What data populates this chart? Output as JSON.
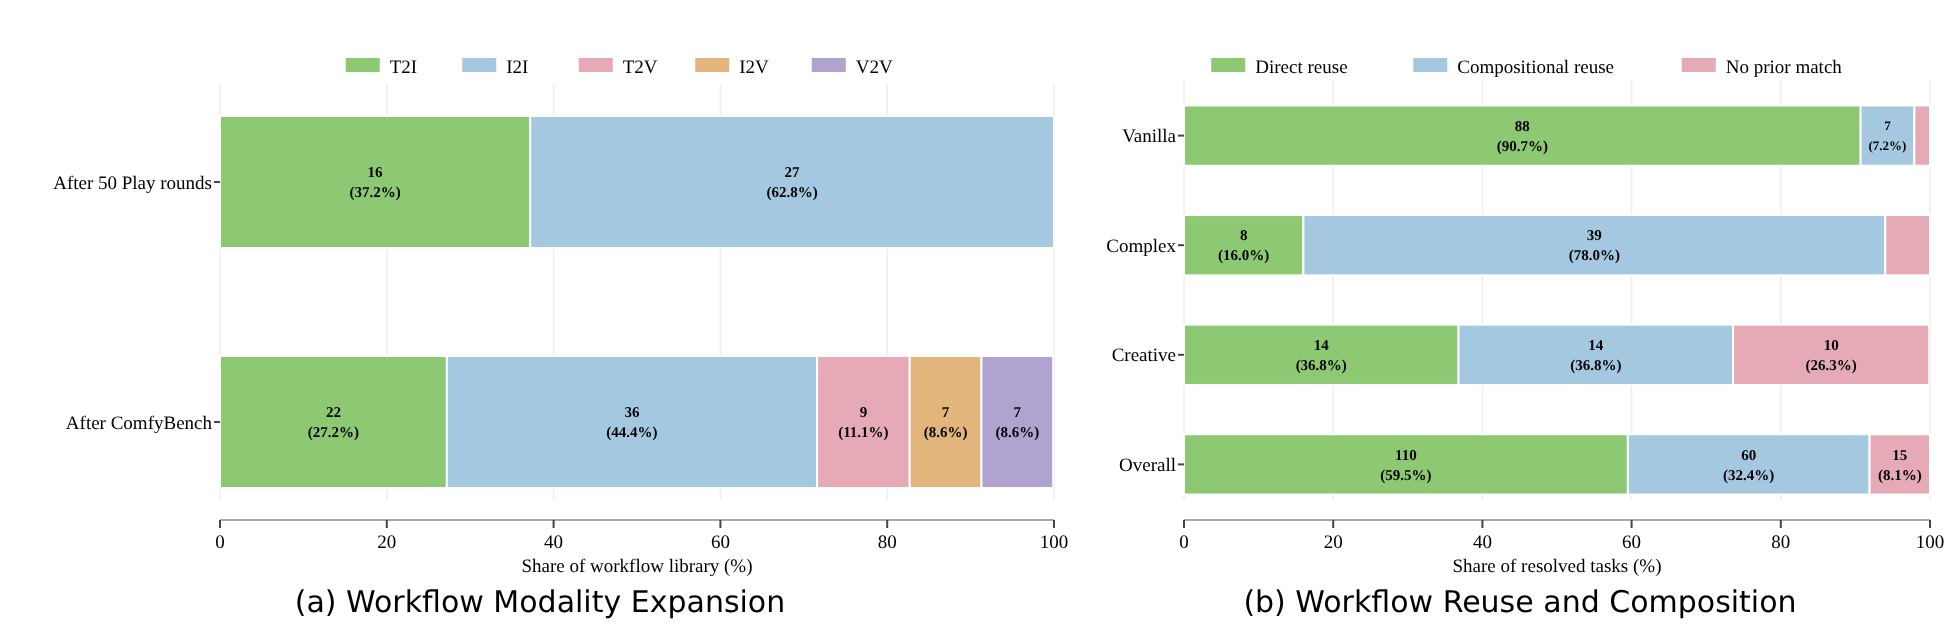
{
  "chart_data": [
    {
      "type": "bar",
      "orientation": "horizontal",
      "stacked": true,
      "title": "(a) Workflow Modality Expansion",
      "xlabel": "Share of workflow library (%)",
      "categories": [
        "After 50 Play rounds",
        "After ComfyBench"
      ],
      "xlim": [
        0,
        100
      ],
      "xticks": [
        0,
        20,
        40,
        60,
        80,
        100
      ],
      "grid": "x",
      "legend": "top",
      "series": [
        {
          "name": "T2I",
          "color": "#8cc972",
          "values": [
            37.2,
            27.2
          ],
          "value_labels": [
            "16\n(37.2%)",
            "22\n(27.2%)"
          ]
        },
        {
          "name": "I2I",
          "color": "#a4c8e0",
          "values": [
            62.8,
            44.4
          ],
          "value_labels": [
            "27\n(62.8%)",
            "36\n(44.4%)"
          ]
        },
        {
          "name": "T2V",
          "color": "#e6aab6",
          "values": [
            null,
            11.1
          ],
          "value_labels": [
            null,
            "9\n(11.1%)"
          ]
        },
        {
          "name": "I2V",
          "color": "#e2b57c",
          "values": [
            null,
            8.6
          ],
          "value_labels": [
            null,
            "7\n(8.6%)"
          ]
        },
        {
          "name": "V2V",
          "color": "#b1a3cf",
          "values": [
            null,
            8.6
          ],
          "value_labels": [
            null,
            "7\n(8.6%)"
          ]
        }
      ]
    },
    {
      "type": "bar",
      "orientation": "horizontal",
      "stacked": true,
      "title": "(b) Workflow Reuse and Composition",
      "xlabel": "Share of resolved tasks (%)",
      "categories": [
        "Vanilla",
        "Complex",
        "Creative",
        "Overall"
      ],
      "xlim": [
        0,
        100
      ],
      "xticks": [
        0,
        20,
        40,
        60,
        80,
        100
      ],
      "grid": "x",
      "legend": "top",
      "series": [
        {
          "name": "Direct reuse",
          "color": "#8cc972",
          "values": [
            90.7,
            16.0,
            36.8,
            59.5
          ],
          "value_labels": [
            "88\n(90.7%)",
            "8\n(16.0%)",
            "14\n(36.8%)",
            "110\n(59.5%)"
          ]
        },
        {
          "name": "Compositional reuse",
          "color": "#a4c8e0",
          "values": [
            7.2,
            78.0,
            36.8,
            32.4
          ],
          "value_labels": [
            "7\n(7.2%)",
            "39\n(78.0%)",
            "14\n(36.8%)",
            "60\n(32.4%)"
          ]
        },
        {
          "name": "No prior match",
          "color": "#e6aab6",
          "values": [
            2.1,
            6.0,
            26.3,
            8.1
          ],
          "value_labels": [
            null,
            null,
            "10\n(26.3%)",
            "15\n(8.1%)"
          ]
        }
      ]
    }
  ]
}
